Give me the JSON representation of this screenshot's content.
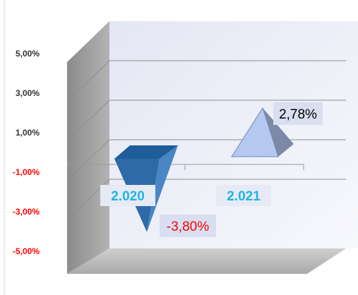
{
  "chart_data": {
    "type": "bar",
    "style": "3d-pyramid",
    "categories": [
      "2.020",
      "2.021"
    ],
    "values": [
      -3.8,
      2.78
    ],
    "data_labels": [
      "-3,80%",
      "2,78%"
    ],
    "ylim": [
      -5,
      5
    ],
    "yticks": [
      5,
      3,
      1,
      -1,
      -3,
      -5
    ],
    "ytick_labels": [
      "5,00%",
      "3,00%",
      "1,00%",
      "-1,00%",
      "-3,00%",
      "-5,00%"
    ],
    "title": "",
    "xlabel": "",
    "ylabel": "",
    "grid": true,
    "legend": "none",
    "colors": {
      "negative_bar": "#2e6aa8",
      "positive_bar": "#b5c8ef",
      "positive_label": "#000000",
      "negative_label": "#ff0000",
      "category_label": "#1fb4e6",
      "back_wall": "#eef0f9",
      "side_wall": "#a0a0a0",
      "floor": "#bdbdbd"
    }
  }
}
